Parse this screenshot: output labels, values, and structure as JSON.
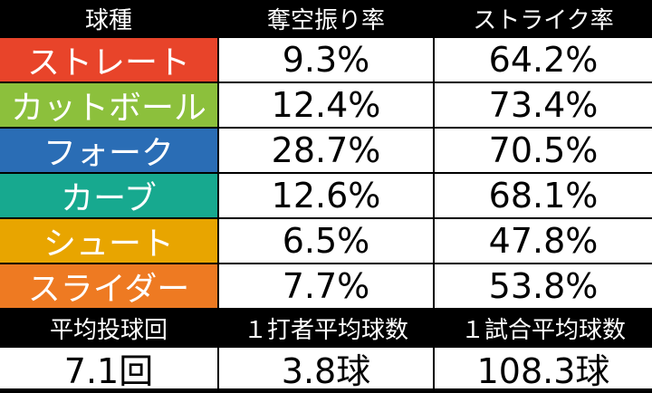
{
  "table": {
    "header": [
      "球種",
      "奪空振り率",
      "ストライク率"
    ],
    "rows": [
      {
        "pitch": "ストレート",
        "color": "#e8442a",
        "cells": [
          "9.3%",
          "64.2%"
        ]
      },
      {
        "pitch": "カットボール",
        "color": "#8cc03c",
        "cells": [
          "12.4%",
          "73.4%"
        ]
      },
      {
        "pitch": "フォーク",
        "color": "#2a6db5",
        "cells": [
          "28.7%",
          "70.5%"
        ]
      },
      {
        "pitch": "カーブ",
        "color": "#17a98f",
        "cells": [
          "12.6%",
          "68.1%"
        ]
      },
      {
        "pitch": "シュート",
        "color": "#e8a500",
        "cells": [
          "6.5%",
          "47.8%"
        ]
      },
      {
        "pitch": "スライダー",
        "color": "#ee7a22",
        "cells": [
          "7.7%",
          "53.8%"
        ]
      }
    ],
    "summary_header": [
      "平均投球回",
      "１打者平均球数",
      "１試合平均球数"
    ],
    "summary_values": [
      "7.1回",
      "3.8球",
      "108.3球"
    ]
  }
}
